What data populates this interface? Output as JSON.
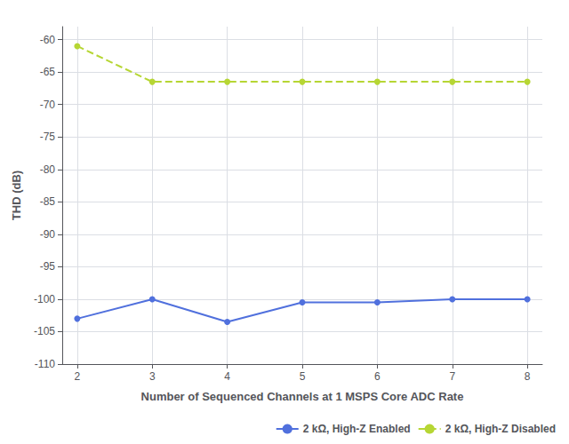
{
  "chart_data": {
    "type": "line",
    "xlabel": "Number of Sequenced Channels at 1 MSPS Core ADC Rate",
    "ylabel": "THD (dB)",
    "x": [
      2,
      3,
      4,
      5,
      6,
      7,
      8
    ],
    "series": [
      {
        "name": "2 kΩ, High-Z Enabled",
        "values": [
          -103,
          -100,
          -103.5,
          -100.5,
          -100.5,
          -100,
          -100
        ],
        "line_style": "solid",
        "marker": "circle"
      },
      {
        "name": "2 kΩ, High-Z Disabled",
        "values": [
          -61,
          -66.5,
          -66.5,
          -66.5,
          -66.5,
          -66.5,
          -66.5
        ],
        "line_style": "dashed",
        "marker": "circle"
      }
    ],
    "xlim": [
      1.8,
      8.2
    ],
    "xticks": [
      2,
      3,
      4,
      5,
      6,
      7,
      8
    ],
    "ylim": [
      -110,
      -58
    ],
    "yticks": [
      -60,
      -65,
      -70,
      -75,
      -80,
      -85,
      -90,
      -95,
      -100,
      -105,
      -110
    ],
    "grid": true,
    "legend": "lower right"
  }
}
